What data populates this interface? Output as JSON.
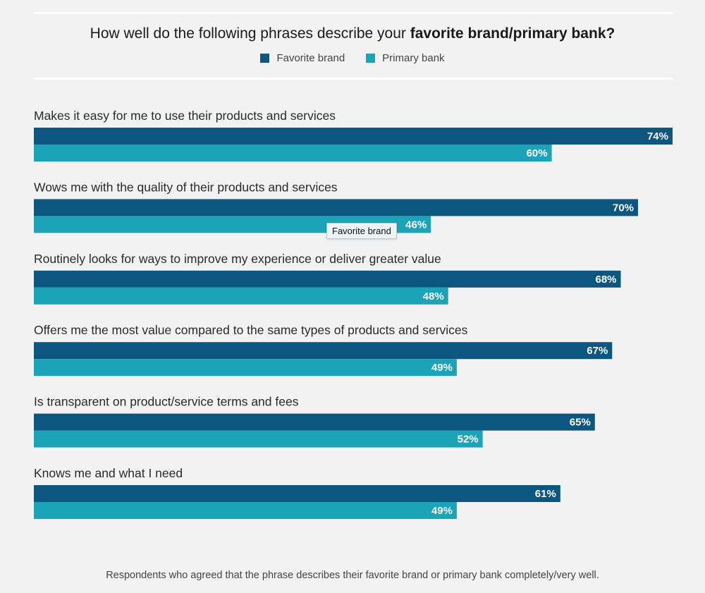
{
  "colors": {
    "favorite": "#0c5680",
    "primary": "#1ba3b8",
    "label": "#ffffff"
  },
  "chart_data": {
    "type": "bar",
    "orientation": "horizontal",
    "title_regular": "How well do the following phrases describe your ",
    "title_bold": "favorite brand/primary bank?",
    "categories": [
      "Makes it easy for me to use their products and services",
      "Wows me with the quality of their products and services",
      "Routinely looks for ways to improve my experience or deliver greater value",
      "Offers me the most value compared to the same types of products and services",
      "Is transparent on product/service terms and fees",
      "Knows me and what I need"
    ],
    "series": [
      {
        "name": "Favorite brand",
        "values": [
          74,
          70,
          68,
          67,
          65,
          61
        ]
      },
      {
        "name": "Primary bank",
        "values": [
          60,
          46,
          48,
          49,
          52,
          49
        ]
      }
    ],
    "value_suffix": "%",
    "xlim": [
      0,
      74
    ],
    "grid": false,
    "legend_position": "top-center",
    "tooltip": "Favorite brand",
    "footnote": "Respondents who agreed that the phrase describes their favorite brand or primary bank completely/very well."
  }
}
